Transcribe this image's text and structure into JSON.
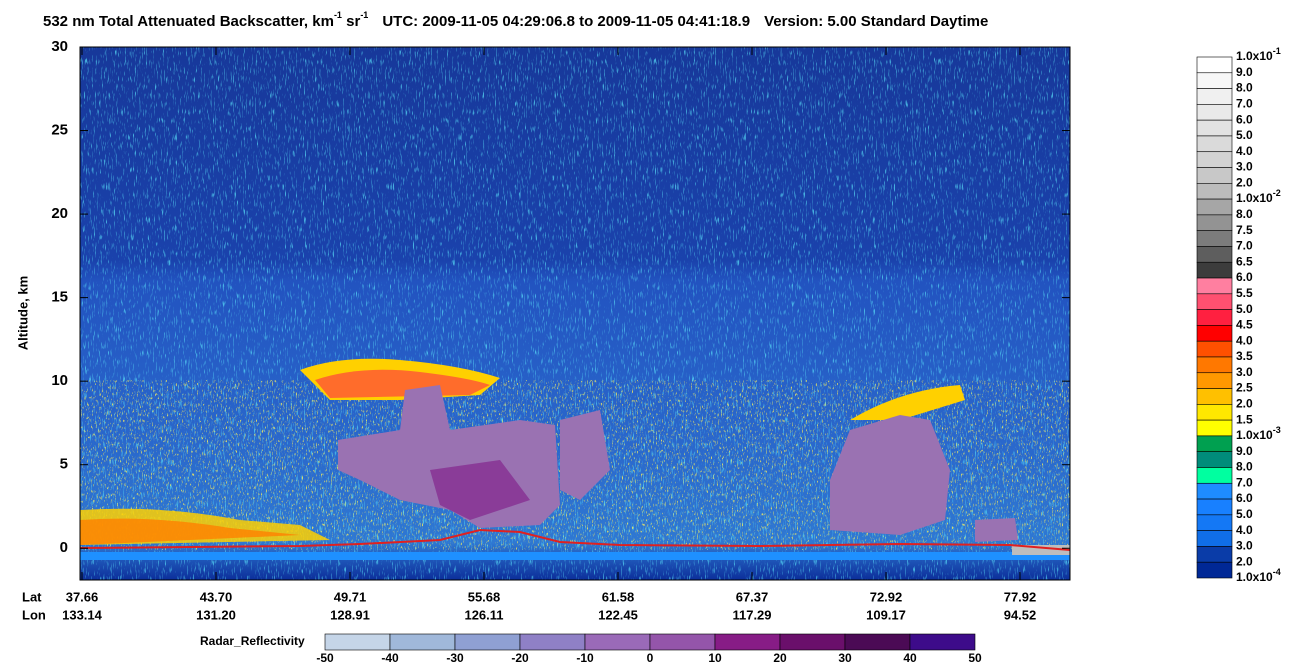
{
  "chart_data": {
    "type": "curtain",
    "title": {
      "main": "532 nm Total Attenuated Backscatter, km",
      "main_sup": "-1",
      "main2": " sr",
      "main2_sup": "-1",
      "time": "UTC:  2009-11-05 04:29:06.8  to  2009-11-05 04:41:18.9",
      "version": "Version: 5.00  Standard  Daytime"
    },
    "y_label": "Altitude, km",
    "ylim": [
      -1.9,
      30
    ],
    "yticks": [
      0,
      5,
      10,
      15,
      20,
      25,
      30
    ],
    "x_row_labels": [
      "Lat",
      "Lon"
    ],
    "lat": [
      "37.66",
      "43.70",
      "49.71",
      "55.68",
      "61.58",
      "67.37",
      "72.92",
      "77.92"
    ],
    "lon": [
      "133.14",
      "131.20",
      "128.91",
      "126.11",
      "122.45",
      "117.29",
      "109.17",
      "94.52"
    ],
    "colorbar": {
      "labels": [
        {
          "text": "1.0x10",
          "sup": "-1"
        },
        "9.0",
        "8.0",
        "7.0",
        "6.0",
        "5.0",
        "4.0",
        "3.0",
        "2.0",
        {
          "text": "1.0x10",
          "sup": "-2"
        },
        "8.0",
        "7.5",
        "7.0",
        "6.5",
        "6.0",
        "5.5",
        "5.0",
        "4.5",
        "4.0",
        "3.5",
        "3.0",
        "2.5",
        "2.0",
        "1.5",
        {
          "text": "1.0x10",
          "sup": "-3"
        },
        "9.0",
        "8.0",
        "7.0",
        "6.0",
        "5.0",
        "4.0",
        "3.0",
        "2.0",
        {
          "text": "1.0x10",
          "sup": "-4"
        }
      ],
      "colors": [
        "#ffffff",
        "#f7f7f7",
        "#f0f0f0",
        "#e9e9e9",
        "#e2e2e2",
        "#dadada",
        "#d2d2d2",
        "#c8c8c8",
        "#bcbcbc",
        "#a6a6a6",
        "#939393",
        "#7c7c7c",
        "#5e5e5e",
        "#3c3c3c",
        "#ff7fa0",
        "#ff5070",
        "#ff2040",
        "#ff0000",
        "#ff5000",
        "#ff7800",
        "#ff9800",
        "#ffc000",
        "#ffe800",
        "#ffff00",
        "#00a050",
        "#008c7a",
        "#00ffa0",
        "#1e8cff",
        "#1880ff",
        "#1478f5",
        "#106ee8",
        "#0a3ca8",
        "#002896"
      ]
    },
    "radar": {
      "label": "Radar_Reflectivity",
      "ticks": [
        -50,
        -40,
        -30,
        -20,
        -10,
        0,
        10,
        20,
        30,
        40,
        50
      ],
      "colors": [
        "#c5d5e8",
        "#a0b8da",
        "#8fa0d3",
        "#8f80c6",
        "#9a6ab8",
        "#9455aa",
        "#871c86",
        "#6a0f6b",
        "#4b0a55",
        "#3d0b8a"
      ]
    }
  }
}
